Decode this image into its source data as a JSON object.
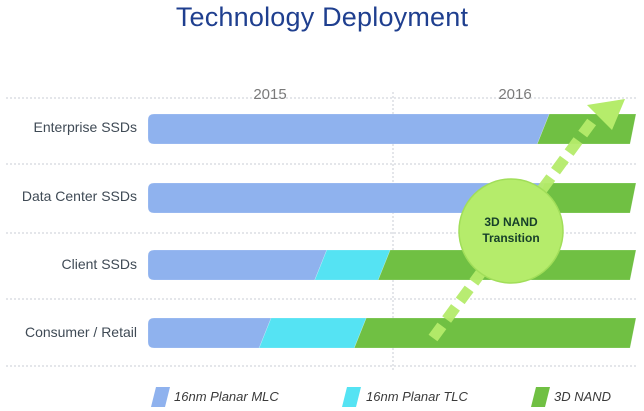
{
  "title": "Technology Deployment",
  "timeline": {
    "years": [
      "2015",
      "2016"
    ]
  },
  "rows": [
    {
      "label": "Enterprise SSDs",
      "segments": [
        {
          "tech": "16nm Planar MLC",
          "share": 0.81
        },
        {
          "tech": "3D NAND",
          "share": 0.19
        }
      ]
    },
    {
      "label": "Data Center SSDs",
      "segments": [
        {
          "tech": "16nm Planar MLC",
          "share": 0.8
        },
        {
          "tech": "3D NAND",
          "share": 0.2
        }
      ]
    },
    {
      "label": "Client SSDs",
      "segments": [
        {
          "tech": "16nm Planar MLC",
          "share": 0.354
        },
        {
          "tech": "16nm Planar TLC",
          "share": 0.13
        },
        {
          "tech": "3D NAND",
          "share": 0.516
        }
      ]
    },
    {
      "label": "Consumer / Retail",
      "segments": [
        {
          "tech": "16nm Planar MLC",
          "share": 0.24
        },
        {
          "tech": "16nm Planar TLC",
          "share": 0.195
        },
        {
          "tech": "3D NAND",
          "share": 0.565
        }
      ]
    }
  ],
  "legend": [
    {
      "label": "16nm Planar MLC",
      "color": "#8fb2ee"
    },
    {
      "label": "16nm Planar TLC",
      "color": "#55e3f3"
    },
    {
      "label": "3D NAND",
      "color": "#70c043"
    }
  ],
  "transition": {
    "line1": "3D NAND",
    "line2": "Transition",
    "color": "#b5ec6b"
  }
}
